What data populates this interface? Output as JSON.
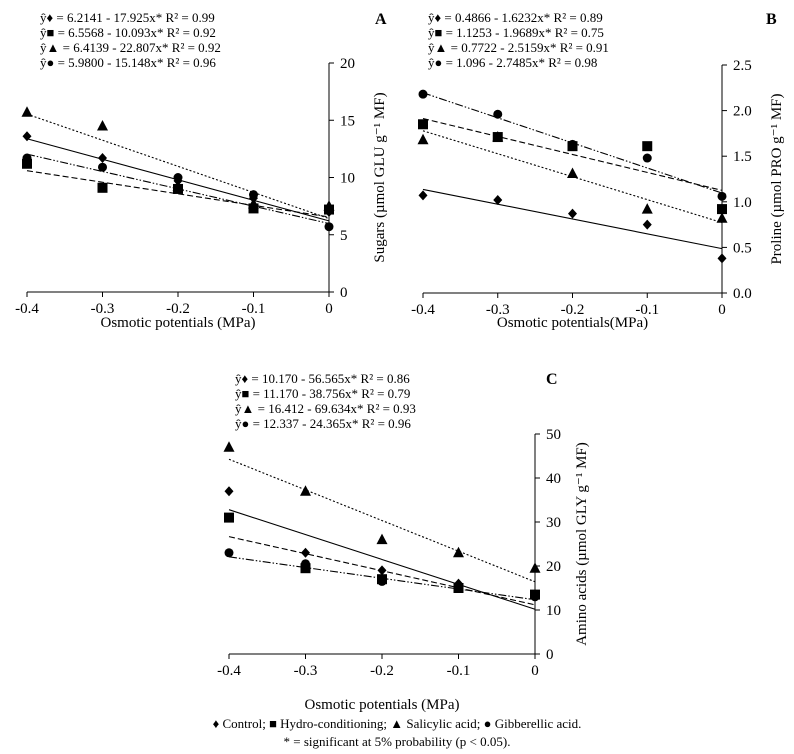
{
  "chart_data": [
    {
      "type": "scatter",
      "panel_label": "A",
      "xlabel": "Osmotic potentials (MPa)",
      "ylabel": "Sugars (µmol GLU g⁻¹ MF)",
      "xlim": [
        -0.4,
        0
      ],
      "ylim": [
        0,
        20
      ],
      "x_ticks": [
        "-0.4",
        "-0.3",
        "-0.2",
        "-0.1",
        "0"
      ],
      "y_ticks": [
        "0",
        "5",
        "10",
        "15",
        "20"
      ],
      "x": [
        -0.4,
        -0.3,
        -0.2,
        -0.1,
        0
      ],
      "grid": false,
      "equations": [
        "ŷ♦ = 6.2141 - 17.925x*  R² = 0.99",
        "ŷ■ = 6.5568 - 10.093x*  R² = 0.92",
        "ŷ▲ = 6.4139 - 22.807x*  R² = 0.92",
        "ŷ● = 5.9800 - 15.148x* R² = 0.96"
      ],
      "series": [
        {
          "marker": "diamond",
          "values": [
            13.6,
            11.7,
            9.7,
            8.2,
            7.0
          ],
          "fit": [
            6.2141,
            17.925
          ],
          "line": "solid"
        },
        {
          "marker": "square",
          "values": [
            11.2,
            9.1,
            9.0,
            7.3,
            7.2
          ],
          "fit": [
            6.5568,
            10.093
          ],
          "line": "dashed"
        },
        {
          "marker": "triangle",
          "values": [
            15.7,
            14.5,
            9.2,
            7.7,
            7.5
          ],
          "fit": [
            6.4139,
            22.807
          ],
          "line": "dotted"
        },
        {
          "marker": "circle",
          "values": [
            11.7,
            10.9,
            10.0,
            8.5,
            5.7
          ],
          "fit": [
            5.98,
            15.148
          ],
          "line": "dash-dot-dot"
        }
      ]
    },
    {
      "type": "scatter",
      "panel_label": "B",
      "xlabel": "Osmotic potentials(MPa)",
      "ylabel": "Proline (µmol PRO g⁻¹ MF)",
      "xlim": [
        -0.4,
        0
      ],
      "ylim": [
        0,
        2.5
      ],
      "x_ticks": [
        "-0.4",
        "-0.3",
        "-0.2",
        "-0.1",
        "0"
      ],
      "y_ticks": [
        "0.0",
        "0.5",
        "1.0",
        "1.5",
        "2.0",
        "2.5"
      ],
      "x": [
        -0.4,
        -0.3,
        -0.2,
        -0.1,
        0
      ],
      "grid": false,
      "equations": [
        "ŷ♦ = 0.4866 - 1.6232x*  R² = 0.89",
        "ŷ■ = 1.1253 - 1.9689x*  R² = 0.75",
        "ŷ▲ = 0.7722 - 2.5159x*  R² = 0.91",
        "ŷ● = 1.096 - 2.7485x*  R² = 0.98"
      ],
      "series": [
        {
          "marker": "diamond",
          "values": [
            1.07,
            1.02,
            0.87,
            0.75,
            0.38
          ],
          "fit": [
            0.4866,
            1.6232
          ],
          "line": "solid"
        },
        {
          "marker": "square",
          "values": [
            1.85,
            1.71,
            1.61,
            1.61,
            0.92
          ],
          "fit": [
            1.1253,
            1.9689
          ],
          "line": "dashed"
        },
        {
          "marker": "triangle",
          "values": [
            1.68,
            1.71,
            1.31,
            0.92,
            0.82
          ],
          "fit": [
            0.7722,
            2.5159
          ],
          "line": "dotted"
        },
        {
          "marker": "circle",
          "values": [
            2.18,
            1.96,
            1.63,
            1.48,
            1.06
          ],
          "fit": [
            1.096,
            2.7485
          ],
          "line": "dash-dot-dot"
        }
      ]
    },
    {
      "type": "scatter",
      "panel_label": "C",
      "xlabel": "Osmotic potentials (MPa)",
      "ylabel": "Amino acids (µmol GLY g⁻¹ MF)",
      "xlim": [
        -0.4,
        0
      ],
      "ylim": [
        0,
        50
      ],
      "x_ticks": [
        "-0.4",
        "-0.3",
        "-0.2",
        "-0.1",
        "0"
      ],
      "y_ticks": [
        "0",
        "10",
        "20",
        "30",
        "40",
        "50"
      ],
      "x": [
        -0.4,
        -0.3,
        -0.2,
        -0.1,
        0
      ],
      "grid": false,
      "equations": [
        "ŷ♦ = 10.170 - 56.565x* R² = 0.86",
        "ŷ■ = 11.170 - 38.756x* R² = 0.79",
        "ŷ▲ = 16.412 - 69.634x*  R² = 0.93",
        "ŷ● = 12.337 - 24.365x* R² = 0.96"
      ],
      "series": [
        {
          "marker": "diamond",
          "values": [
            37,
            23,
            19,
            16,
            13
          ],
          "fit": [
            10.17,
            56.565
          ],
          "line": "solid"
        },
        {
          "marker": "square",
          "values": [
            31,
            19.5,
            17,
            15,
            13.5
          ],
          "fit": [
            11.17,
            38.756
          ],
          "line": "dashed"
        },
        {
          "marker": "triangle",
          "values": [
            47,
            37,
            26,
            23,
            19.5
          ],
          "fit": [
            16.412,
            69.634
          ],
          "line": "dotted"
        },
        {
          "marker": "circle",
          "values": [
            23,
            20.5,
            16.5,
            15,
            13
          ],
          "fit": [
            12.337,
            24.365
          ],
          "line": "dash-dot-dot"
        }
      ]
    }
  ],
  "legend": "♦ Control; ■ Hydro-conditioning; ▲ Salicylic acid; ● Gibberellic acid.",
  "footnote": "* = significant at 5% probability (p < 0.05).",
  "colors": {
    "ink": "#000000",
    "background": "#ffffff"
  }
}
